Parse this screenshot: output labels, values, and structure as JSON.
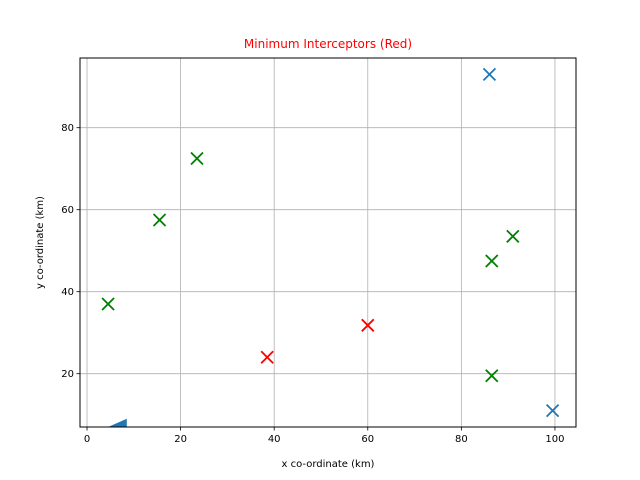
{
  "chart_data": {
    "type": "scatter",
    "title": "Minimum Interceptors (Red)",
    "title_color": "#ff0000",
    "xlabel": "x co-ordinate (km)",
    "ylabel": "y co-ordinate (km)",
    "xlim": [
      -1.5,
      104.5
    ],
    "ylim": [
      7,
      97
    ],
    "xticks": [
      0,
      20,
      40,
      60,
      80,
      100
    ],
    "yticks": [
      20,
      40,
      60,
      80
    ],
    "grid": true,
    "marker": "x",
    "series": [
      {
        "color": "#1f77b4",
        "points": [
          [
            86,
            93
          ],
          [
            99.5,
            11
          ]
        ]
      },
      {
        "color": "#008000",
        "points": [
          [
            23.5,
            72.5
          ],
          [
            15.5,
            57.5
          ],
          [
            4.5,
            37
          ],
          [
            91,
            53.5
          ],
          [
            86.5,
            47.5
          ],
          [
            86.5,
            19.5
          ]
        ]
      },
      {
        "color": "#ff0000",
        "points": [
          [
            38.5,
            24
          ],
          [
            60,
            31.8
          ]
        ]
      }
    ],
    "annotations": [
      {
        "shape": "wedge",
        "color": "#1f77b4",
        "points": [
          [
            4.5,
            7
          ],
          [
            8.5,
            9
          ],
          [
            8.5,
            7
          ]
        ]
      }
    ]
  }
}
